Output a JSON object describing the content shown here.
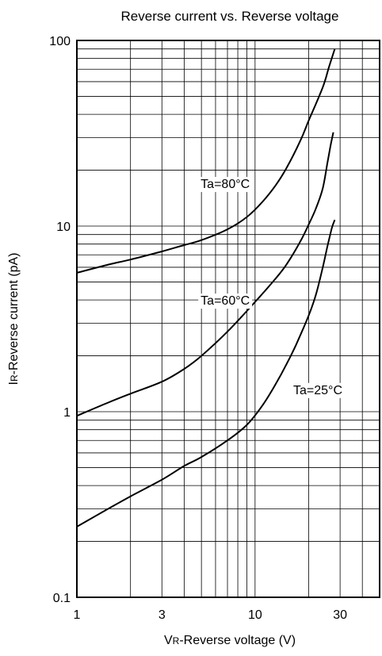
{
  "chart_data": {
    "type": "line",
    "title": "Reverse current vs. Reverse voltage",
    "xlabel_main": "V",
    "xlabel_sub": "R",
    "xlabel_rest": "-Reverse voltage (V)",
    "ylabel_main": "I",
    "ylabel_sub": "R",
    "ylabel_rest": "-Reverse current (pA)",
    "x_scale": "log",
    "y_scale": "log",
    "xlim": [
      1,
      50
    ],
    "ylim": [
      0.1,
      100
    ],
    "x_ticks": [
      {
        "value": 1,
        "label": "1"
      },
      {
        "value": 3,
        "label": "3"
      },
      {
        "value": 10,
        "label": "10"
      },
      {
        "value": 30,
        "label": "30"
      }
    ],
    "y_ticks": [
      {
        "value": 0.1,
        "label": "0.1"
      },
      {
        "value": 1,
        "label": "1"
      },
      {
        "value": 10,
        "label": "10"
      },
      {
        "value": 100,
        "label": "100"
      }
    ],
    "grid": true,
    "series": [
      {
        "name": "Ta=80°C",
        "label_at": [
          6.8,
          17
        ],
        "points": [
          [
            1,
            5.6
          ],
          [
            1.5,
            6.2
          ],
          [
            2,
            6.6
          ],
          [
            3,
            7.3
          ],
          [
            4,
            7.9
          ],
          [
            5,
            8.4
          ],
          [
            7,
            9.6
          ],
          [
            9,
            11.2
          ],
          [
            11,
            13.5
          ],
          [
            13,
            16.5
          ],
          [
            15,
            20.5
          ],
          [
            18,
            29
          ],
          [
            20,
            37
          ],
          [
            24,
            56
          ],
          [
            26,
            72
          ],
          [
            28,
            90
          ]
        ]
      },
      {
        "name": "Ta=60°C",
        "label_at": [
          6.8,
          4.0
        ],
        "points": [
          [
            1,
            0.95
          ],
          [
            1.5,
            1.12
          ],
          [
            2,
            1.25
          ],
          [
            3,
            1.45
          ],
          [
            4,
            1.7
          ],
          [
            5,
            2.0
          ],
          [
            7,
            2.7
          ],
          [
            10,
            3.9
          ],
          [
            13,
            5.2
          ],
          [
            15,
            6.2
          ],
          [
            18,
            8.3
          ],
          [
            20,
            10.2
          ],
          [
            22,
            12.5
          ],
          [
            24,
            16
          ],
          [
            25.5,
            22
          ],
          [
            26.5,
            27
          ],
          [
            27.5,
            32
          ]
        ]
      },
      {
        "name": "Ta=25°C",
        "label_at": [
          22.5,
          1.32
        ],
        "points": [
          [
            1,
            0.24
          ],
          [
            1.5,
            0.3
          ],
          [
            2,
            0.35
          ],
          [
            3,
            0.43
          ],
          [
            4,
            0.51
          ],
          [
            5,
            0.57
          ],
          [
            7,
            0.7
          ],
          [
            9,
            0.85
          ],
          [
            11,
            1.08
          ],
          [
            13,
            1.4
          ],
          [
            15,
            1.8
          ],
          [
            17,
            2.3
          ],
          [
            20,
            3.3
          ],
          [
            22,
            4.3
          ],
          [
            24,
            6.0
          ],
          [
            25.5,
            7.8
          ],
          [
            27,
            9.8
          ],
          [
            28,
            10.8
          ]
        ]
      }
    ]
  }
}
